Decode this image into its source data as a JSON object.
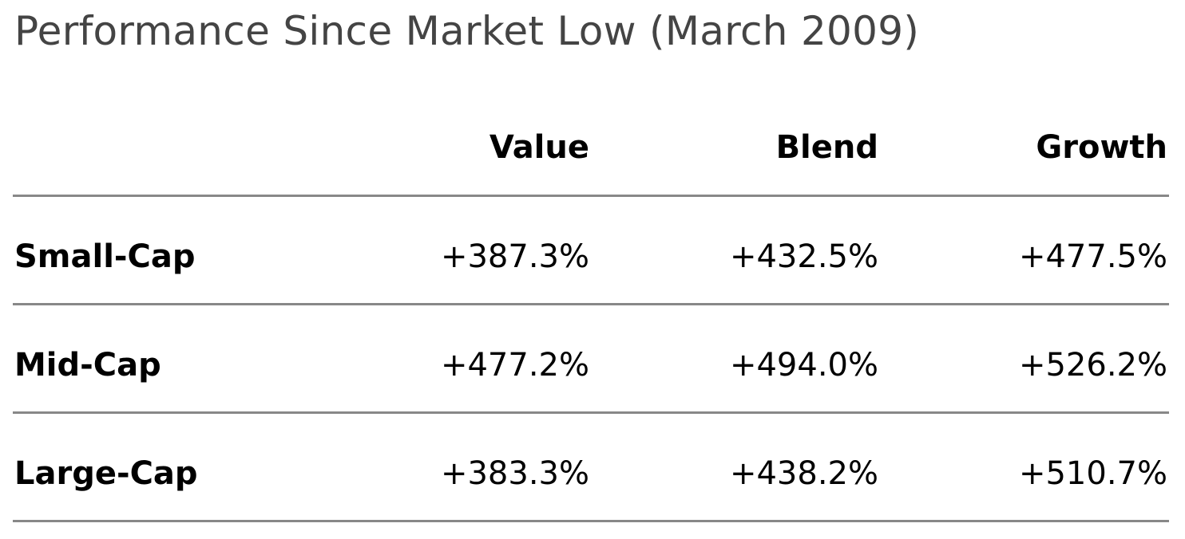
{
  "title": "Performance Since Market Low (March 2009)",
  "table": {
    "columns": [
      "Value",
      "Blend",
      "Growth"
    ],
    "rows": [
      {
        "label": "Small-Cap",
        "cells": [
          "+387.3%",
          "+432.5%",
          "+477.5%"
        ]
      },
      {
        "label": "Mid-Cap",
        "cells": [
          "+477.2%",
          "+494.0%",
          "+526.2%"
        ]
      },
      {
        "label": "Large-Cap",
        "cells": [
          "+383.3%",
          "+438.2%",
          "+510.7%"
        ]
      }
    ]
  }
}
